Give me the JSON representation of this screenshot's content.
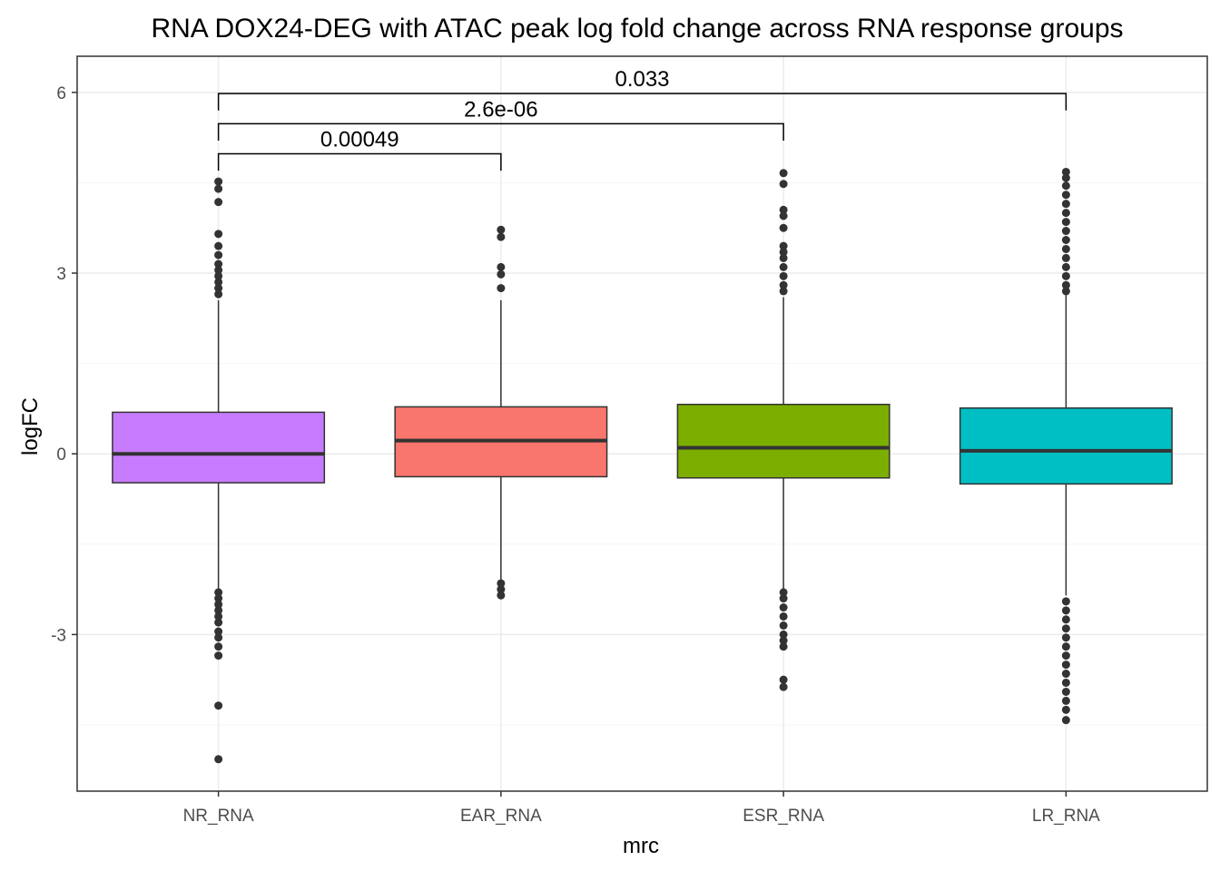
{
  "chart_data": {
    "type": "box",
    "title": "RNA DOX24-DEG with ATAC peak log fold change across RNA response groups",
    "xlabel": "mrc",
    "ylabel": "logFC",
    "ylim": [
      -5.6,
      6.6
    ],
    "y_ticks": [
      -3,
      0,
      3,
      6
    ],
    "grid": true,
    "legend": "none",
    "categories": [
      "NR_RNA",
      "EAR_RNA",
      "ESR_RNA",
      "LR_RNA"
    ],
    "colors": [
      "#c77cff",
      "#f8766d",
      "#7cae00",
      "#00bfc4"
    ],
    "boxes": [
      {
        "name": "NR_RNA",
        "q1": -0.48,
        "median": 0.0,
        "q3": 0.69,
        "whisker_low": -2.25,
        "whisker_high": 2.55,
        "outliers": [
          4.52,
          4.4,
          4.18,
          3.65,
          3.45,
          3.3,
          3.15,
          3.05,
          2.95,
          2.85,
          2.75,
          2.65,
          -2.3,
          -2.4,
          -2.5,
          -2.6,
          -2.7,
          -2.8,
          -2.95,
          -3.05,
          -3.2,
          -3.35,
          -4.18,
          -5.07
        ]
      },
      {
        "name": "EAR_RNA",
        "q1": -0.38,
        "median": 0.22,
        "q3": 0.78,
        "whisker_low": -2.1,
        "whisker_high": 2.55,
        "outliers": [
          3.72,
          3.6,
          3.1,
          2.98,
          2.75,
          -2.15,
          -2.25,
          -2.35
        ]
      },
      {
        "name": "ESR_RNA",
        "q1": -0.4,
        "median": 0.1,
        "q3": 0.82,
        "whisker_low": -2.25,
        "whisker_high": 2.6,
        "outliers": [
          4.66,
          4.48,
          4.05,
          3.95,
          3.75,
          3.45,
          3.35,
          3.25,
          3.1,
          2.95,
          2.8,
          2.7,
          -2.3,
          -2.4,
          -2.55,
          -2.7,
          -2.85,
          -3.0,
          -3.1,
          -3.2,
          -3.75,
          -3.87
        ]
      },
      {
        "name": "LR_RNA",
        "q1": -0.5,
        "median": 0.05,
        "q3": 0.76,
        "whisker_low": -2.35,
        "whisker_high": 2.65,
        "outliers": [
          4.68,
          4.58,
          4.45,
          4.3,
          4.15,
          4.0,
          3.85,
          3.7,
          3.55,
          3.4,
          3.25,
          3.1,
          2.95,
          2.8,
          2.7,
          -2.45,
          -2.6,
          -2.75,
          -2.9,
          -3.05,
          -3.2,
          -3.35,
          -3.5,
          -3.65,
          -3.8,
          -3.95,
          -4.1,
          -4.25,
          -4.42
        ]
      }
    ],
    "comparisons": [
      {
        "from": "NR_RNA",
        "to": "EAR_RNA",
        "y": 4.98,
        "label": "0.00049"
      },
      {
        "from": "NR_RNA",
        "to": "ESR_RNA",
        "y": 5.48,
        "label": "2.6e-06"
      },
      {
        "from": "NR_RNA",
        "to": "LR_RNA",
        "y": 5.98,
        "label": "0.033"
      }
    ]
  }
}
